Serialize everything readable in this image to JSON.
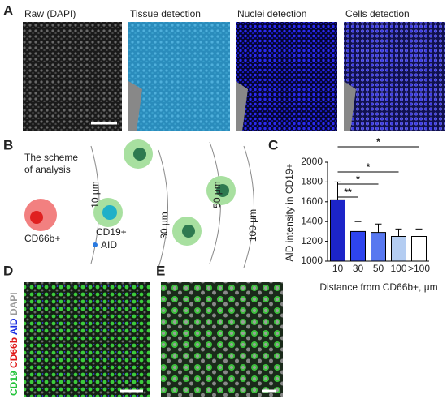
{
  "panels": {
    "a": {
      "label": "A",
      "titles": [
        "Raw (DAPI)",
        "Tissue detection",
        "Nuclei detection",
        "Cells detection"
      ]
    },
    "b": {
      "label": "B",
      "scheme": [
        "The scheme",
        "of analysis"
      ],
      "cells": [
        "CD66b+",
        "CD19+"
      ],
      "legend": "AID",
      "distances": [
        "10 μm",
        "30 μm",
        "50 μm",
        "100 μm"
      ]
    },
    "c": {
      "label": "C"
    },
    "d": {
      "label": "D",
      "stains": [
        {
          "text": "CD19",
          "color": "#22c33a"
        },
        {
          "text": "CD66b",
          "color": "#e01818"
        },
        {
          "text": "AID",
          "color": "#1a2ee0"
        },
        {
          "text": "DAPI",
          "color": "#9a9a9a"
        }
      ]
    },
    "e": {
      "label": "E"
    }
  },
  "chart_data": {
    "type": "bar",
    "categories": [
      "10",
      "30",
      "50",
      "100",
      ">100"
    ],
    "values": [
      1620,
      1300,
      1290,
      1250,
      1250
    ],
    "errors": [
      180,
      100,
      85,
      75,
      75
    ],
    "colors": [
      "#1c24c8",
      "#2e44ee",
      "#5878f0",
      "#b4cdf2",
      "#ffffff"
    ],
    "ylim": [
      1000,
      2000
    ],
    "yticks": [
      1000,
      1200,
      1400,
      1600,
      1800,
      2000
    ],
    "ylabel": "AID intensity in CD19+",
    "xlabel": "Distance from CD66b+, μm",
    "significance": [
      "**",
      "*",
      "*",
      "*"
    ]
  }
}
